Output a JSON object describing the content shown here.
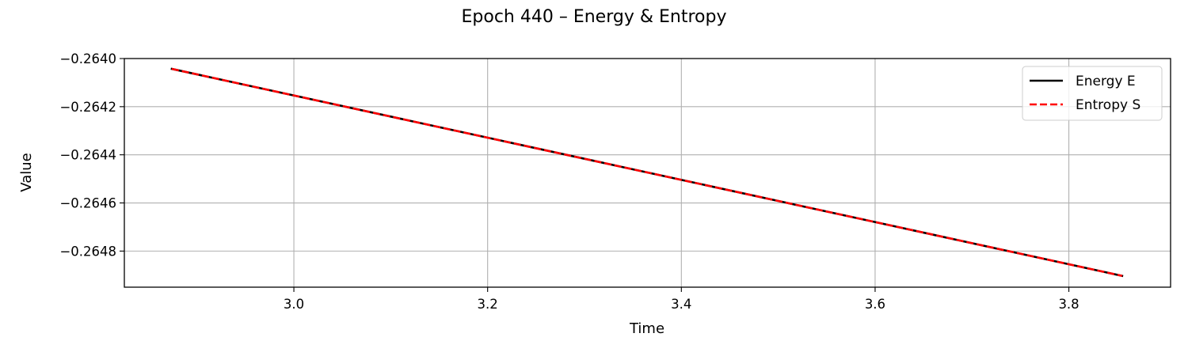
{
  "chart_data": {
    "type": "line",
    "title": "Epoch 440 – Energy & Entropy",
    "xlabel": "Time",
    "ylabel": "Value",
    "xlim": [
      2.825,
      3.905
    ],
    "ylim": [
      -0.26495,
      -0.264
    ],
    "x_ticks": [
      3.0,
      3.2,
      3.4,
      3.6,
      3.8
    ],
    "x_tick_labels": [
      "3.0",
      "3.2",
      "3.4",
      "3.6",
      "3.8"
    ],
    "y_ticks": [
      -0.264,
      -0.2642,
      -0.2644,
      -0.2646,
      -0.2648
    ],
    "y_tick_labels": [
      "−0.2640",
      "−0.2642",
      "−0.2644",
      "−0.2646",
      "−0.2648"
    ],
    "grid": true,
    "legend_position": "top-right",
    "series": [
      {
        "name": "Energy E",
        "color": "#000000",
        "style": "solid",
        "x": [
          2.874,
          3.855
        ],
        "y": [
          -0.264043,
          -0.264903
        ]
      },
      {
        "name": "Entropy S",
        "color": "#ff0000",
        "style": "dashed",
        "x": [
          2.874,
          3.855
        ],
        "y": [
          -0.264043,
          -0.264903
        ]
      }
    ]
  }
}
